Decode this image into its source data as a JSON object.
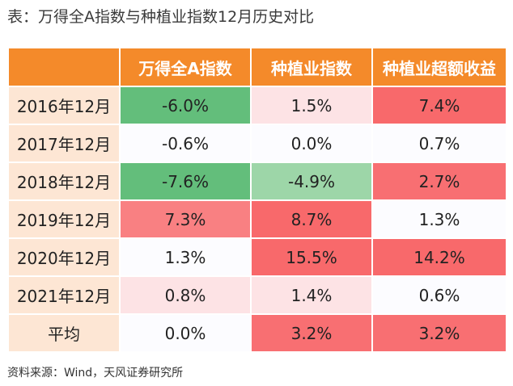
{
  "caption": "表：万得全A指数与种植业指数12月历史对比",
  "table": {
    "headers": [
      "",
      "万得全A指数",
      "种植业指数",
      "种植业超额收益"
    ],
    "rows": [
      {
        "label": "2016年12月",
        "cells": [
          {
            "text": "-6.0%",
            "color": "#63be7b"
          },
          {
            "text": "1.5%",
            "color": "#fde3e5"
          },
          {
            "text": "7.4%",
            "color": "#f8696b"
          }
        ]
      },
      {
        "label": "2017年12月",
        "cells": [
          {
            "text": "-0.6%",
            "color": "#fcfcff"
          },
          {
            "text": "0.0%",
            "color": "#fcfcff"
          },
          {
            "text": "0.7%",
            "color": "#fcfcff"
          }
        ]
      },
      {
        "label": "2018年12月",
        "cells": [
          {
            "text": "-7.6%",
            "color": "#63be7b"
          },
          {
            "text": "-4.9%",
            "color": "#9dd6a8"
          },
          {
            "text": "2.7%",
            "color": "#f86f72"
          }
        ]
      },
      {
        "label": "2019年12月",
        "cells": [
          {
            "text": "7.3%",
            "color": "#f98082"
          },
          {
            "text": "8.7%",
            "color": "#f8696b"
          },
          {
            "text": "1.3%",
            "color": "#fcfcff"
          }
        ]
      },
      {
        "label": "2020年12月",
        "cells": [
          {
            "text": "1.3%",
            "color": "#fcfcff"
          },
          {
            "text": "15.5%",
            "color": "#f8696b"
          },
          {
            "text": "14.2%",
            "color": "#f8696b"
          }
        ]
      },
      {
        "label": "2021年12月",
        "cells": [
          {
            "text": "0.8%",
            "color": "#fde3e5"
          },
          {
            "text": "1.4%",
            "color": "#fde3e5"
          },
          {
            "text": "0.6%",
            "color": "#fcfcff"
          }
        ]
      },
      {
        "label": "平均",
        "cells": [
          {
            "text": "0.0%",
            "color": "#fcfcff"
          },
          {
            "text": "3.2%",
            "color": "#f86f72"
          },
          {
            "text": "3.2%",
            "color": "#f86f72"
          }
        ]
      }
    ]
  },
  "footnote": "资料来源：Wind，天风证券研究所",
  "colors": {
    "header_bg": "#f48a2a",
    "label_bg": "#fde6d4"
  }
}
